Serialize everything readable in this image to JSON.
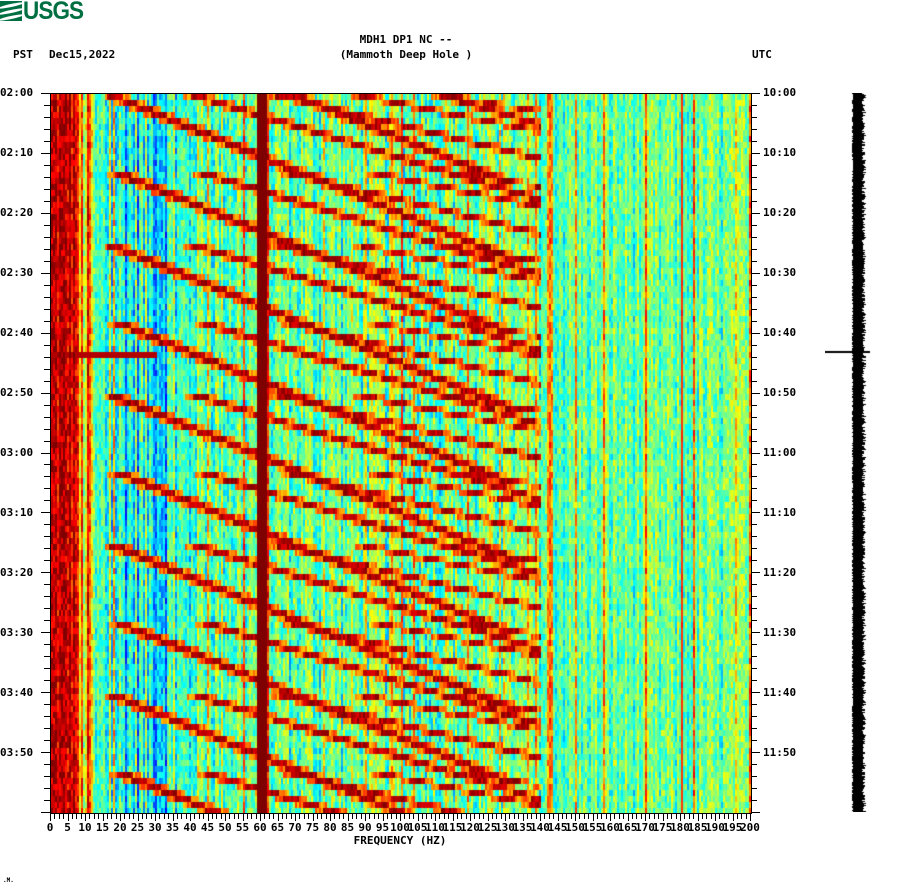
{
  "header": {
    "logo_text": "USGS",
    "title_line1": "MDH1 DP1 NC --",
    "title_line2": "(Mammoth Deep Hole )",
    "left_timezone": "PST",
    "date": "Dec15,2022",
    "right_timezone": "UTC"
  },
  "footer": {
    "mark": ".M."
  },
  "colors": {
    "dark_red": "#800000",
    "red": "#ff0000",
    "orange": "#ff8000",
    "yellow": "#ffff00",
    "green_yellow": "#80ff80",
    "cyan": "#00ffff",
    "light_blue": "#0080ff",
    "blue": "#0000ff",
    "logo_green": "#006f41"
  },
  "chart_data": {
    "type": "heatmap",
    "title": "MDH1 DP1 NC -- (Mammoth Deep Hole )",
    "subtitle": "PST Dec15,2022 / UTC",
    "xlabel": "FREQUENCY (HZ)",
    "ylabel_left": "PST",
    "ylabel_right": "UTC",
    "xlim": [
      0,
      200
    ],
    "x_ticks": [
      "0",
      "5",
      "10",
      "15",
      "20",
      "25",
      "30",
      "35",
      "40",
      "45",
      "50",
      "55",
      "60",
      "65",
      "70",
      "75",
      "80",
      "85",
      "90",
      "95",
      "100",
      "105",
      "110",
      "115",
      "120",
      "125",
      "130",
      "135",
      "140",
      "145",
      "150",
      "155",
      "160",
      "165",
      "170",
      "175",
      "180",
      "185",
      "190",
      "195",
      "200"
    ],
    "y_ticks_left": [
      "02:00",
      "02:10",
      "02:20",
      "02:30",
      "02:40",
      "02:50",
      "03:00",
      "03:10",
      "03:20",
      "03:30",
      "03:40",
      "03:50"
    ],
    "y_ticks_right": [
      "10:00",
      "10:10",
      "10:20",
      "10:30",
      "10:40",
      "10:50",
      "11:00",
      "11:10",
      "11:20",
      "11:30",
      "11:40",
      "11:50"
    ],
    "time_range_minutes": 120,
    "colormap": "jet",
    "features": {
      "low_freq_band_hz": [
        0,
        7
      ],
      "constant_line_hz": 60,
      "constant_line_180_hz": 180,
      "impulse_time_min": 43,
      "sweep_period_min": 12.5,
      "sweep_harmonics_start_hz": [
        18,
        42,
        66,
        90,
        115
      ],
      "sweep_slope_hz_per_min": 4.2
    },
    "grid": false,
    "legend": "none"
  },
  "seismogram": {
    "event_time_min": 43
  }
}
